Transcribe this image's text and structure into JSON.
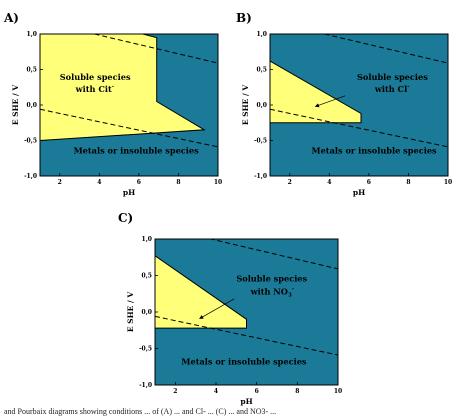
{
  "chart_data": [
    {
      "type": "area",
      "panel": "A)",
      "xlabel": "pH",
      "ylabel": "E SHE / V",
      "xlim": [
        1,
        10
      ],
      "ylim": [
        -1.0,
        1.0
      ],
      "x_ticks": [
        2,
        4,
        6,
        8,
        10
      ],
      "y_ticks": [
        -1.0,
        -0.5,
        0.0,
        0.5,
        1.0
      ],
      "x_tick_labels": [
        "2",
        "4",
        "6",
        "8",
        "10"
      ],
      "y_tick_labels": [
        "-1,0",
        "-0,5",
        "0,0",
        "0,5",
        "1,0"
      ],
      "background_color": "#1a7a97",
      "region_color": "#ffff7a",
      "soluble_region": [
        [
          1,
          1.0
        ],
        [
          6.2,
          1.0
        ],
        [
          6.9,
          0.95
        ],
        [
          6.9,
          0.05
        ],
        [
          9.3,
          -0.35
        ],
        [
          1,
          -0.5
        ]
      ],
      "dashed_lines": [
        [
          [
            1,
            1.18
          ],
          [
            10,
            0.59
          ]
        ],
        [
          [
            1,
            -0.06
          ],
          [
            10,
            -0.59
          ]
        ]
      ],
      "labels": [
        {
          "text": "Soluble species",
          "x": 2.0,
          "y": 0.35
        },
        {
          "text": "with Cit",
          "x": 2.8,
          "y": 0.18,
          "sup": "-"
        },
        {
          "text": "Metals or insoluble species",
          "x": 2.7,
          "y": -0.68
        }
      ]
    },
    {
      "type": "area",
      "panel": "B)",
      "xlabel": "pH",
      "ylabel": "E SHE / V",
      "xlim": [
        1,
        10
      ],
      "ylim": [
        -1.0,
        1.0
      ],
      "x_ticks": [
        2,
        4,
        6,
        8,
        10
      ],
      "y_ticks": [
        -1.0,
        -0.5,
        0.0,
        0.5,
        1.0
      ],
      "x_tick_labels": [
        "2",
        "4",
        "6",
        "8",
        "10"
      ],
      "y_tick_labels": [
        "-1,0",
        "-0,5",
        "0,0",
        "0,5",
        "1,0"
      ],
      "background_color": "#1a7a97",
      "region_color": "#ffff7a",
      "soluble_region": [
        [
          1,
          0.62
        ],
        [
          5.6,
          -0.12
        ],
        [
          5.6,
          -0.25
        ],
        [
          1,
          -0.25
        ]
      ],
      "dashed_lines": [
        [
          [
            1,
            1.18
          ],
          [
            10,
            0.59
          ]
        ],
        [
          [
            1,
            -0.06
          ],
          [
            10,
            -0.59
          ]
        ]
      ],
      "arrow": {
        "from": [
          4.8,
          0.13
        ],
        "to": [
          3.3,
          -0.02
        ]
      },
      "labels": [
        {
          "text": "Soluble species",
          "x": 5.4,
          "y": 0.35
        },
        {
          "text": "with Cl",
          "x": 6.3,
          "y": 0.18,
          "sup": "-"
        },
        {
          "text": "Metals or insoluble species",
          "x": 3.1,
          "y": -0.68
        }
      ]
    },
    {
      "type": "area",
      "panel": "C)",
      "xlabel": "pH",
      "ylabel": "E SHE / V",
      "xlim": [
        1,
        10
      ],
      "ylim": [
        -1.0,
        1.0
      ],
      "x_ticks": [
        2,
        4,
        6,
        8,
        10
      ],
      "y_ticks": [
        -1.0,
        -0.5,
        0.0,
        0.5,
        1.0
      ],
      "x_tick_labels": [
        "2",
        "4",
        "6",
        "8",
        "10"
      ],
      "y_tick_labels": [
        "-1,0",
        "-0,5",
        "0,0",
        "0,5",
        "1,0"
      ],
      "background_color": "#1a7a97",
      "region_color": "#ffff7a",
      "soluble_region": [
        [
          1,
          0.77
        ],
        [
          5.5,
          -0.1
        ],
        [
          5.5,
          -0.22
        ],
        [
          1,
          -0.22
        ]
      ],
      "dashed_lines": [
        [
          [
            1,
            1.18
          ],
          [
            10,
            0.59
          ]
        ],
        [
          [
            1,
            -0.06
          ],
          [
            10,
            -0.59
          ]
        ]
      ],
      "arrow": {
        "from": [
          4.9,
          0.18
        ],
        "to": [
          3.2,
          -0.09
        ]
      },
      "labels": [
        {
          "text": "Soluble species",
          "x": 5.0,
          "y": 0.42
        },
        {
          "text": "with NO",
          "x": 5.7,
          "y": 0.24,
          "sub": "3",
          "sup": "-"
        },
        {
          "text": "Metals or insoluble species",
          "x": 2.3,
          "y": -0.72
        }
      ]
    }
  ],
  "caption": "and Pourbaix diagrams showing conditions ... of (A) ... and Cl- ... (C) ... and NO3- ..."
}
